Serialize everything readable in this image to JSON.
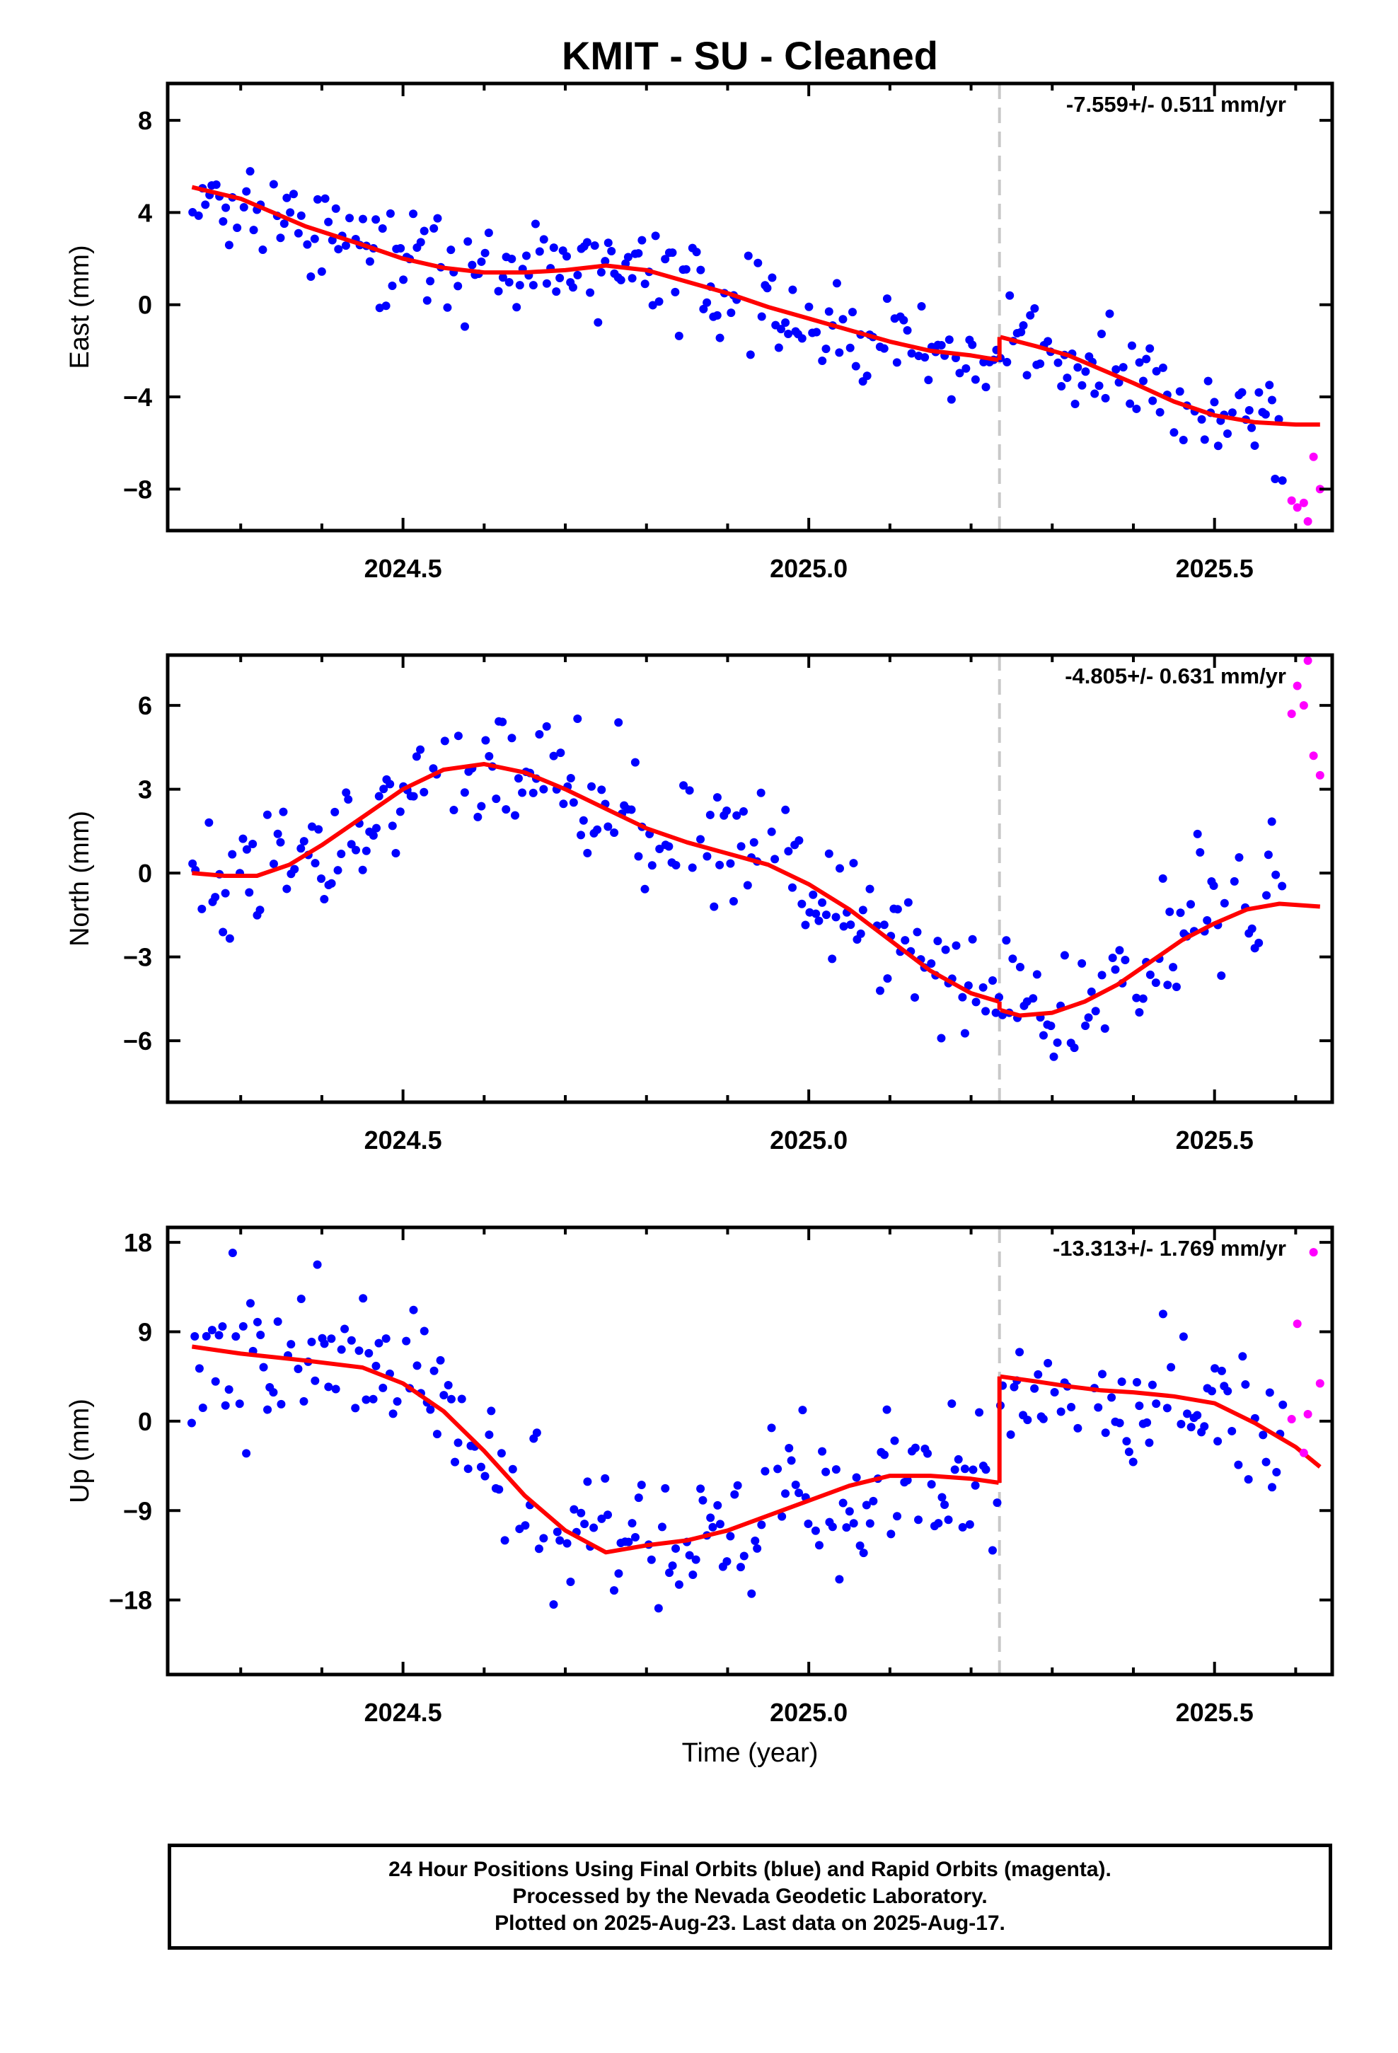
{
  "title": "KMIT  - SU - Cleaned",
  "xlabel": "Time (year)",
  "footer": {
    "line1": "24 Hour Positions Using Final Orbits (blue) and Rapid Orbits (magenta).",
    "line2": "Processed by the Nevada Geodetic Laboratory.",
    "line3": "Plotted on 2025-Aug-23. Last data on 2025-Aug-17."
  },
  "colors": {
    "final": "#0000ff",
    "rapid": "#ff00ff",
    "model": "#ff0000",
    "offset_line": "#c8c8c8"
  },
  "chart_data": [
    {
      "type": "scatter",
      "ylabel": "East (mm)",
      "rate_label": "-7.559+/- 0.511 mm/yr",
      "xlim": [
        2024.21,
        2025.645
      ],
      "ylim": [
        -9.8,
        9.6
      ],
      "xticks": [
        2024.5,
        2025.0,
        2025.5
      ],
      "xtick_labels": [
        "2024.5",
        "2025.0",
        "2025.5"
      ],
      "yticks": [
        -8,
        -4,
        0,
        4,
        8
      ],
      "ytick_labels": [
        "−8",
        "−4",
        "0",
        "4",
        "8"
      ],
      "offset_year": 2025.235,
      "model": {
        "x": [
          2024.24,
          2024.3,
          2024.38,
          2024.45,
          2024.5,
          2024.55,
          2024.6,
          2024.65,
          2024.7,
          2024.75,
          2024.8,
          2024.85,
          2024.9,
          2024.95,
          2025.0,
          2025.05,
          2025.1,
          2025.15,
          2025.2,
          2025.234
        ],
        "y": [
          5.1,
          4.6,
          3.4,
          2.6,
          2.0,
          1.6,
          1.4,
          1.4,
          1.5,
          1.7,
          1.5,
          1.0,
          0.5,
          -0.1,
          -0.6,
          -1.1,
          -1.6,
          -2.0,
          -2.2,
          -2.4
        ]
      },
      "model2": {
        "x": [
          2025.236,
          2025.28,
          2025.32,
          2025.36,
          2025.4,
          2025.45,
          2025.5,
          2025.55,
          2025.6,
          2025.63
        ],
        "y": [
          -1.4,
          -1.8,
          -2.2,
          -2.8,
          -3.4,
          -4.2,
          -4.8,
          -5.1,
          -5.2,
          -5.2
        ]
      },
      "rapid": {
        "x": [
          2025.595,
          2025.602,
          2025.61,
          2025.615,
          2025.622,
          2025.63
        ],
        "y": [
          -8.5,
          -8.8,
          -8.6,
          -9.4,
          -6.6,
          -8.0
        ]
      },
      "final_trend": {
        "x": [
          2024.24,
          2024.3,
          2024.38,
          2024.45,
          2024.5,
          2024.55,
          2024.6,
          2024.65,
          2024.7,
          2024.75,
          2024.8,
          2024.85,
          2024.9,
          2024.95,
          2025.0,
          2025.05,
          2025.1,
          2025.15,
          2025.2,
          2025.234,
          2025.236,
          2025.28,
          2025.32,
          2025.36,
          2025.4,
          2025.45,
          2025.5,
          2025.55,
          2025.585
        ],
        "y": [
          5.1,
          4.6,
          3.4,
          2.6,
          2.0,
          1.6,
          1.4,
          1.4,
          1.5,
          1.7,
          1.5,
          1.0,
          0.5,
          -0.1,
          -0.6,
          -1.1,
          -1.6,
          -2.0,
          -2.2,
          -2.4,
          -1.4,
          -1.8,
          -2.2,
          -2.8,
          -3.4,
          -4.2,
          -4.8,
          -5.1,
          -5.2
        ]
      },
      "scatter_sd": 1.1,
      "seed": 11
    },
    {
      "type": "scatter",
      "ylabel": "North (mm)",
      "rate_label": "-4.805+/- 0.631 mm/yr",
      "xlim": [
        2024.21,
        2025.645
      ],
      "ylim": [
        -8.2,
        7.8
      ],
      "xticks": [
        2024.5,
        2025.0,
        2025.5
      ],
      "xtick_labels": [
        "2024.5",
        "2025.0",
        "2025.5"
      ],
      "yticks": [
        -6,
        -3,
        0,
        3,
        6
      ],
      "ytick_labels": [
        "−6",
        "−3",
        "0",
        "3",
        "6"
      ],
      "offset_year": 2025.235,
      "model": {
        "x": [
          2024.24,
          2024.28,
          2024.32,
          2024.36,
          2024.4,
          2024.45,
          2024.5,
          2024.55,
          2024.6,
          2024.65,
          2024.7,
          2024.75,
          2024.8,
          2024.85,
          2024.9,
          2024.95,
          2025.0,
          2025.05,
          2025.1,
          2025.15,
          2025.2,
          2025.234
        ],
        "y": [
          0.0,
          -0.1,
          -0.1,
          0.3,
          1.0,
          2.0,
          3.0,
          3.7,
          3.9,
          3.6,
          3.0,
          2.3,
          1.6,
          1.1,
          0.7,
          0.3,
          -0.4,
          -1.3,
          -2.4,
          -3.5,
          -4.3,
          -4.6
        ]
      },
      "model2": {
        "x": [
          2025.236,
          2025.26,
          2025.3,
          2025.34,
          2025.38,
          2025.42,
          2025.46,
          2025.5,
          2025.54,
          2025.58,
          2025.63
        ],
        "y": [
          -4.9,
          -5.1,
          -5.0,
          -4.6,
          -4.0,
          -3.2,
          -2.4,
          -1.8,
          -1.3,
          -1.1,
          -1.2
        ]
      },
      "rapid": {
        "x": [
          2025.595,
          2025.602,
          2025.61,
          2025.615,
          2025.622,
          2025.63
        ],
        "y": [
          5.7,
          6.7,
          6.0,
          7.6,
          4.2,
          3.5
        ]
      },
      "final_trend": {
        "x": [
          2024.24,
          2024.28,
          2024.32,
          2024.36,
          2024.4,
          2024.45,
          2024.5,
          2024.55,
          2024.6,
          2024.65,
          2024.7,
          2024.75,
          2024.8,
          2024.85,
          2024.9,
          2024.95,
          2025.0,
          2025.05,
          2025.1,
          2025.15,
          2025.2,
          2025.234,
          2025.236,
          2025.26,
          2025.3,
          2025.34,
          2025.38,
          2025.42,
          2025.46,
          2025.5,
          2025.54,
          2025.585
        ],
        "y": [
          0.0,
          -0.1,
          -0.1,
          0.3,
          1.0,
          2.0,
          3.0,
          3.7,
          3.9,
          3.6,
          3.0,
          2.3,
          1.6,
          1.1,
          0.7,
          0.3,
          -0.4,
          -1.3,
          -2.4,
          -3.5,
          -4.3,
          -4.6,
          -4.9,
          -5.1,
          -5.0,
          -4.6,
          -4.0,
          -3.2,
          -2.4,
          -1.8,
          -1.3,
          -1.1
        ]
      },
      "scatter_sd": 1.2,
      "seed": 23
    },
    {
      "type": "scatter",
      "ylabel": "Up (mm)",
      "rate_label": "-13.313+/- 1.769 mm/yr",
      "xlim": [
        2024.21,
        2025.645
      ],
      "ylim": [
        -25.5,
        19.5
      ],
      "xticks": [
        2024.5,
        2025.0,
        2025.5
      ],
      "xtick_labels": [
        "2024.5",
        "2025.0",
        "2025.5"
      ],
      "yticks": [
        -18,
        -9,
        0,
        9,
        18
      ],
      "ytick_labels": [
        "−18",
        "−9",
        "0",
        "9",
        "18"
      ],
      "offset_year": 2025.235,
      "model": {
        "x": [
          2024.24,
          2024.3,
          2024.38,
          2024.45,
          2024.5,
          2024.55,
          2024.6,
          2024.65,
          2024.7,
          2024.75,
          2024.8,
          2024.85,
          2024.9,
          2024.95,
          2025.0,
          2025.05,
          2025.1,
          2025.15,
          2025.2,
          2025.234
        ],
        "y": [
          7.5,
          6.8,
          6.1,
          5.4,
          3.8,
          1.0,
          -3.0,
          -7.5,
          -11.0,
          -13.2,
          -12.5,
          -12.0,
          -11.0,
          -9.5,
          -8.0,
          -6.5,
          -5.5,
          -5.5,
          -5.8,
          -6.2
        ]
      },
      "model2": {
        "x": [
          2025.236,
          2025.28,
          2025.32,
          2025.36,
          2025.4,
          2025.45,
          2025.5,
          2025.55,
          2025.6,
          2025.63
        ],
        "y": [
          4.5,
          4.0,
          3.5,
          3.1,
          2.9,
          2.5,
          1.8,
          -0.2,
          -2.6,
          -4.6
        ]
      },
      "rapid": {
        "x": [
          2025.595,
          2025.602,
          2025.61,
          2025.615,
          2025.622,
          2025.63
        ],
        "y": [
          0.2,
          9.8,
          -3.2,
          0.7,
          17.0,
          3.8
        ]
      },
      "final_trend": {
        "x": [
          2024.24,
          2024.3,
          2024.38,
          2024.45,
          2024.5,
          2024.55,
          2024.6,
          2024.65,
          2024.7,
          2024.75,
          2024.8,
          2024.85,
          2024.9,
          2024.95,
          2025.0,
          2025.05,
          2025.1,
          2025.15,
          2025.2,
          2025.234,
          2025.236,
          2025.28,
          2025.32,
          2025.36,
          2025.4,
          2025.45,
          2025.5,
          2025.55,
          2025.585
        ],
        "y": [
          7.5,
          6.8,
          6.1,
          5.4,
          3.8,
          1.0,
          -3.0,
          -7.5,
          -11.0,
          -13.2,
          -12.5,
          -12.0,
          -11.0,
          -9.5,
          -8.0,
          -6.5,
          -5.5,
          -5.5,
          -5.8,
          -6.2,
          4.5,
          4.0,
          3.5,
          3.1,
          2.9,
          2.5,
          1.8,
          -0.2,
          -1.9
        ]
      },
      "scatter_sd": 4.0,
      "seed": 37
    }
  ]
}
